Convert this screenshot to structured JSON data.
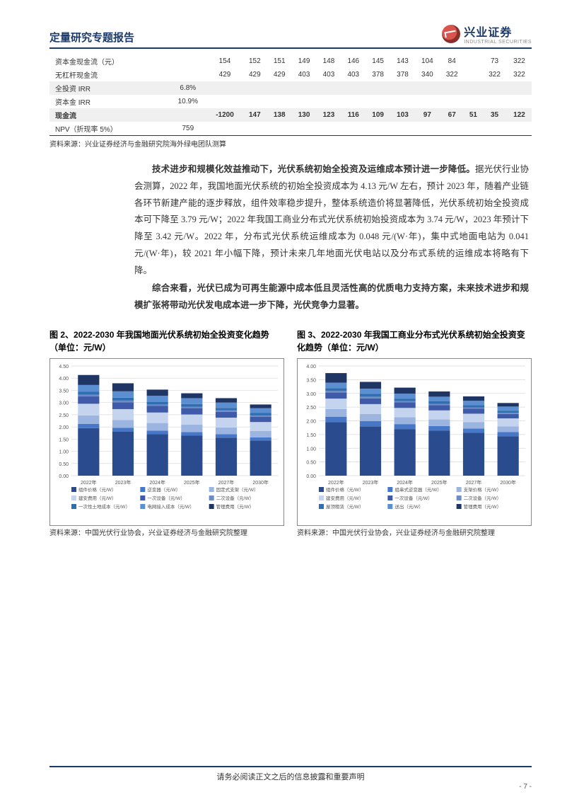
{
  "header": {
    "report_title": "定量研究专题报告",
    "logo_cn": "兴业证券",
    "logo_en": "INDUSTRIAL SECURITIES"
  },
  "top_table": {
    "rows": [
      {
        "label": "资本金现金流（元）",
        "v": [
          "",
          "154",
          "152",
          "151",
          "149",
          "148",
          "146",
          "145",
          "143",
          "104",
          "84",
          "",
          "73",
          "322"
        ],
        "shade": false
      },
      {
        "label": "无杠杆现金流",
        "v": [
          "",
          "429",
          "429",
          "429",
          "403",
          "403",
          "403",
          "378",
          "378",
          "340",
          "322",
          "",
          "322",
          "322"
        ],
        "shade": false
      },
      {
        "label": "全投资 IRR",
        "v": [
          "6.8%",
          "",
          "",
          "",
          "",
          "",
          "",
          "",
          "",
          "",
          "",
          "",
          "",
          ""
        ],
        "shade": true
      },
      {
        "label": "资本金 IRR",
        "v": [
          "10.9%",
          "",
          "",
          "",
          "",
          "",
          "",
          "",
          "",
          "",
          "",
          "",
          "",
          ""
        ],
        "shade": false
      },
      {
        "label": "现金流",
        "v": [
          "",
          "-1200",
          "147",
          "138",
          "130",
          "123",
          "116",
          "109",
          "103",
          "97",
          "67",
          "51",
          "35",
          "122"
        ],
        "shade": true,
        "bold": true
      },
      {
        "label": "NPV（折现率 5%）",
        "v": [
          "759",
          "",
          "",
          "",
          "",
          "",
          "",
          "",
          "",
          "",
          "",
          "",
          "",
          ""
        ],
        "shade": false
      }
    ],
    "divider_after": true,
    "source": "资料来源：兴业证券经济与金融研究院海外绿电团队测算"
  },
  "body": {
    "p1": "技术进步和规模化效益推动下，光伏系统初始全投资及运维成本预计进一步降低。",
    "p1_rest": "据光伏行业协会测算，2022 年，我国地面光伏系统的初始全投资成本为 4.13 元/W 左右，预计 2023 年，随着产业链各环节新建产能的逐步释放，组件效率稳步提升，整体系统造价将显著降低，光伏系统初始全投资成本可下降至 3.79 元/W；2022 年我国工商业分布式光伏系统初始投资成本为 3.74 元/W，2023 年预计下降至 3.42 元/W。2022 年，分布式光伏系统运维成本为 0.048 元/(W·年)，集中式地面电站为 0.041 元/(W·年)，较 2021 年小幅下降，预计未来几年地面光伏电站以及分布式系统的运维成本将略有下降。",
    "p2": "综合来看，光伏已成为可再生能源中成本低且灵活性高的优质电力支持方案，未来技术进步和规模扩张将带动光伏发电成本进一步下降，光伏竞争力显著。"
  },
  "chart_left": {
    "title": "图 2、2022-2030 年我国地面光伏系统初始全投资变化趋势（单位：元/W）",
    "type": "stacked-bar",
    "categories": [
      "2022年",
      "2023年",
      "2024年",
      "2025年",
      "2027年",
      "2030年"
    ],
    "ylim": [
      0,
      4.5
    ],
    "ytick_step": 0.5,
    "axis_fontsize": 7,
    "legend_fontsize": 6.5,
    "background_color": "#ffffff",
    "grid_color": "#d9d9d9",
    "bar_width": 0.62,
    "stacks": [
      {
        "name": "组件价格（元/W）",
        "color": "#2a4b8d",
        "values": [
          1.95,
          1.8,
          1.7,
          1.64,
          1.56,
          1.44
        ]
      },
      {
        "name": "逆变器（元/W）",
        "color": "#4677c9",
        "values": [
          0.17,
          0.16,
          0.15,
          0.15,
          0.14,
          0.13
        ]
      },
      {
        "name": "固定式支架（元/W）",
        "color": "#9bb5e0",
        "values": [
          0.35,
          0.32,
          0.31,
          0.3,
          0.28,
          0.26
        ]
      },
      {
        "name": "建安费用（元/W）",
        "color": "#c4d3ee",
        "values": [
          0.48,
          0.45,
          0.43,
          0.42,
          0.4,
          0.37
        ]
      },
      {
        "name": "一次设备（元/W）",
        "color": "#3f5aa8",
        "values": [
          0.3,
          0.28,
          0.27,
          0.26,
          0.24,
          0.22
        ]
      },
      {
        "name": "二次设备（元/W）",
        "color": "#6d8cc7",
        "values": [
          0.07,
          0.07,
          0.06,
          0.06,
          0.06,
          0.05
        ]
      },
      {
        "name": "一次性土地成本（元/W）",
        "color": "#2f6fb1",
        "values": [
          0.12,
          0.12,
          0.11,
          0.11,
          0.1,
          0.1
        ]
      },
      {
        "name": "电网接入成本（元/W）",
        "color": "#5b8fd1",
        "values": [
          0.28,
          0.26,
          0.25,
          0.24,
          0.22,
          0.2
        ]
      },
      {
        "name": "管理费用（元/W）",
        "color": "#1f3564",
        "values": [
          0.41,
          0.33,
          0.25,
          0.2,
          0.18,
          0.15
        ]
      }
    ],
    "source": "资料来源：中国光伏行业协会，兴业证券经济与金融研究院整理"
  },
  "chart_right": {
    "title": "图 3、2022-2030 年我国工商业分布式光伏系统初始全投资变化趋势（单位：元/W）",
    "type": "stacked-bar",
    "categories": [
      "2022年",
      "2023年",
      "2024年",
      "2025年",
      "2027年",
      "2030年"
    ],
    "ylim": [
      0,
      4.0
    ],
    "ytick_step": 0.5,
    "axis_fontsize": 7,
    "legend_fontsize": 6.5,
    "background_color": "#ffffff",
    "grid_color": "#d9d9d9",
    "bar_width": 0.62,
    "stacks": [
      {
        "name": "组件价格（元/W）",
        "color": "#2a4b8d",
        "values": [
          1.95,
          1.8,
          1.7,
          1.64,
          1.56,
          1.44
        ]
      },
      {
        "name": "组串式逆变器（元/W）",
        "color": "#4677c9",
        "values": [
          0.2,
          0.19,
          0.18,
          0.17,
          0.16,
          0.15
        ]
      },
      {
        "name": "支架价格（元/W）",
        "color": "#9bb5e0",
        "values": [
          0.28,
          0.26,
          0.25,
          0.24,
          0.23,
          0.21
        ]
      },
      {
        "name": "建安费用（元/W）",
        "color": "#c4d3ee",
        "values": [
          0.38,
          0.36,
          0.34,
          0.33,
          0.31,
          0.29
        ]
      },
      {
        "name": "一次设备（元/W）",
        "color": "#3f5aa8",
        "values": [
          0.22,
          0.21,
          0.2,
          0.19,
          0.18,
          0.16
        ]
      },
      {
        "name": "二次设备（元/W）",
        "color": "#6d8cc7",
        "values": [
          0.06,
          0.06,
          0.05,
          0.05,
          0.05,
          0.04
        ]
      },
      {
        "name": "屋顶租赁（元/W）",
        "color": "#2f6fb1",
        "values": [
          0.1,
          0.1,
          0.09,
          0.09,
          0.08,
          0.08
        ]
      },
      {
        "name": "送出（元/W）",
        "color": "#5b8fd1",
        "values": [
          0.2,
          0.19,
          0.18,
          0.17,
          0.16,
          0.15
        ]
      },
      {
        "name": "管理费用（元/W）",
        "color": "#1f3564",
        "values": [
          0.35,
          0.25,
          0.22,
          0.19,
          0.16,
          0.13
        ]
      }
    ],
    "source": "资料来源：中国光伏行业协会，兴业证券经济与金融研究院整理"
  },
  "footer": {
    "text": "请务必阅读正文之后的信息披露和重要声明",
    "page_num": "- 7 -"
  }
}
